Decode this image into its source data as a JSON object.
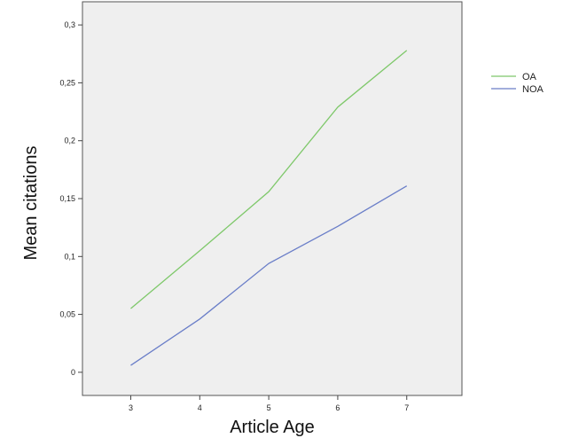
{
  "chart_data": {
    "type": "line",
    "x": [
      3,
      4,
      5,
      6,
      7
    ],
    "xticks": [
      "3",
      "4",
      "5",
      "6",
      "7"
    ],
    "yticks": [
      "0",
      "0,05",
      "0,1",
      "0,15",
      "0,2",
      "0,25",
      "0,3"
    ],
    "ytick_values": [
      0,
      0.05,
      0.1,
      0.15,
      0.2,
      0.25,
      0.3
    ],
    "xlim": [
      2.3,
      7.8
    ],
    "ylim": [
      -0.02,
      0.32
    ],
    "xlabel": "Article Age",
    "ylabel": "Mean citations",
    "grid": false,
    "legend_position": "right",
    "series": [
      {
        "name": "OA",
        "color": "#7ec86a",
        "values": [
          0.055,
          0.105,
          0.156,
          0.229,
          0.278
        ]
      },
      {
        "name": "NOA",
        "color": "#6a7ec8",
        "values": [
          0.006,
          0.046,
          0.094,
          0.126,
          0.161
        ]
      }
    ],
    "plot_background": "#efefef"
  }
}
